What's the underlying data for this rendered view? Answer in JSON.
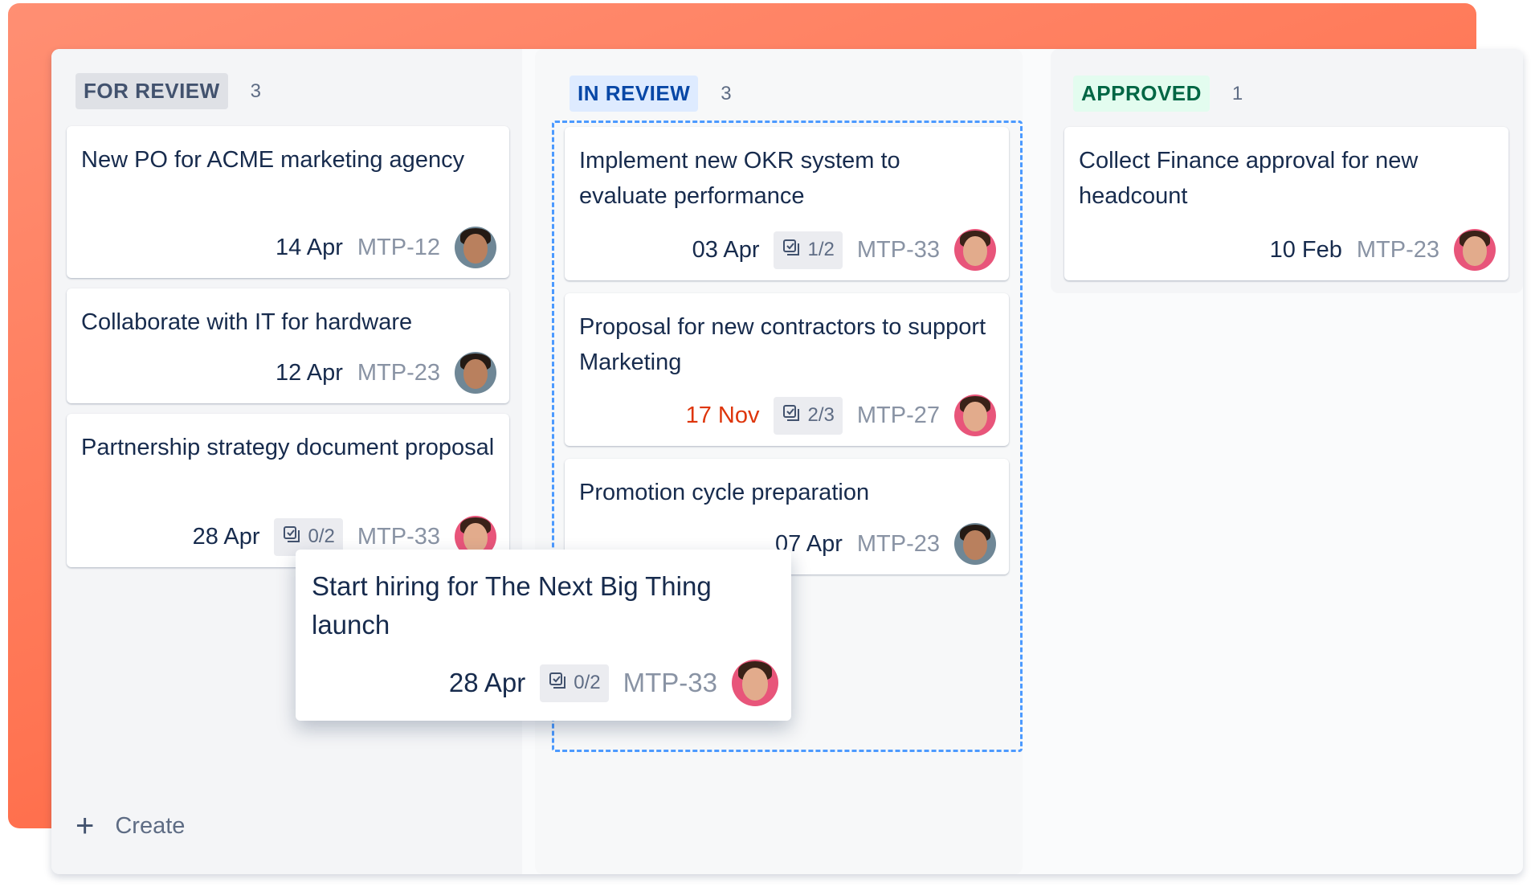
{
  "colors": {
    "accent_bg": "#ff7452",
    "drop_border": "#4c9aff",
    "overdue": "#de350b"
  },
  "columns": [
    {
      "title": "FOR REVIEW",
      "count": "3",
      "lozenge_bg": "#dfe1e6",
      "lozenge_fg": "#42526e",
      "cards": [
        {
          "title": "New PO for ACME marketing agency",
          "date": "14 Apr",
          "key": "MTP-12",
          "avatar": "man-avatar"
        },
        {
          "title": "Collaborate with IT for hardware",
          "date": "12 Apr",
          "key": "MTP-23",
          "avatar": "man-avatar"
        },
        {
          "title": "Partnership strategy document proposal",
          "date": "28 Apr",
          "checklist": "0/2",
          "key": "MTP-33",
          "avatar": "woman-avatar"
        }
      ],
      "create_label": "Create"
    },
    {
      "title": "IN REVIEW",
      "count": "3",
      "lozenge_bg": "#deebff",
      "lozenge_fg": "#0747a6",
      "cards": [
        {
          "title": "Implement new OKR system to evaluate performance",
          "date": "03 Apr",
          "checklist": "1/2",
          "key": "MTP-33",
          "avatar": "woman-avatar"
        },
        {
          "title": "Proposal for new contractors to support Marketing",
          "date": "17 Nov",
          "overdue": true,
          "checklist": "2/3",
          "key": "MTP-27",
          "avatar": "woman-avatar"
        },
        {
          "title": "Promotion cycle preparation",
          "date": "07 Apr",
          "key": "MTP-23",
          "avatar": "man-avatar"
        }
      ]
    },
    {
      "title": "APPROVED",
      "count": "1",
      "lozenge_bg": "#e3fcef",
      "lozenge_fg": "#006644",
      "cards": [
        {
          "title": "Collect Finance approval for new headcount",
          "date": "10 Feb",
          "key": "MTP-23",
          "avatar": "woman-avatar"
        }
      ]
    }
  ],
  "dragging_card": {
    "title": "Start hiring for The Next Big Thing launch",
    "date": "28 Apr",
    "checklist": "0/2",
    "key": "MTP-33",
    "avatar": "woman-avatar"
  }
}
